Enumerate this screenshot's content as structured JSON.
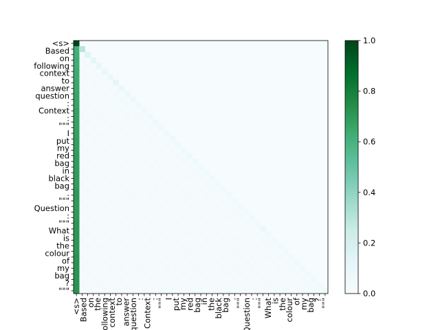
{
  "chart_data": {
    "type": "heatmap",
    "title": "",
    "xlabel": "",
    "ylabel": "",
    "tokens": [
      "<s>",
      "Based",
      "on",
      "the",
      "following",
      "context",
      "to",
      "answer",
      "the",
      "question",
      ":",
      "",
      "Context",
      ":",
      "",
      "\"\"\"",
      "",
      "I",
      "put",
      "my",
      "red",
      "bag",
      "in",
      "the",
      "black",
      "bag",
      ".",
      "",
      "\"\"\"",
      "",
      "Question",
      ":",
      "",
      "\"\"\"",
      "",
      "What",
      "is",
      "the",
      "colour",
      "of",
      "my",
      "bag",
      "?",
      "",
      "\"\"\""
    ],
    "y_tick_labels": [
      "<s>",
      "Based",
      "on",
      "following",
      "context",
      "to",
      "answer",
      "question",
      ":",
      "Context",
      ":",
      "\"\"\"",
      "I",
      "put",
      "my",
      "red",
      "bag",
      "in",
      "black",
      "bag",
      ".",
      "\"\"\"",
      "Question",
      ":",
      "\"\"\"",
      "What",
      "is",
      "the",
      "colour",
      "of",
      "my",
      "bag",
      "?",
      "\"\"\""
    ],
    "x_tick_labels": [
      "<s>",
      "Based",
      "on",
      "the",
      "following",
      "context",
      "to",
      "answer",
      "question",
      ":",
      "Context",
      ":",
      "\"\"\"",
      "I",
      "put",
      "my",
      "red",
      "bag",
      "in",
      "the",
      "black",
      "bag",
      ".",
      "\"\"\"",
      "Question",
      ":",
      "\"\"\"",
      "What",
      "is",
      "the",
      "colour",
      "of",
      "my",
      "bag",
      "?",
      "\"\"\""
    ],
    "first_column_attention": [
      1.0,
      0.62,
      0.62,
      0.63,
      0.63,
      0.64,
      0.64,
      0.65,
      0.65,
      0.66,
      0.66,
      0.66,
      0.67,
      0.67,
      0.67,
      0.67,
      0.68,
      0.68,
      0.68,
      0.68,
      0.69,
      0.69,
      0.69,
      0.69,
      0.69,
      0.69,
      0.7,
      0.7,
      0.7,
      0.7,
      0.7,
      0.7,
      0.71,
      0.71,
      0.71,
      0.71,
      0.71,
      0.71,
      0.72,
      0.72,
      0.72,
      0.72,
      0.72,
      0.72,
      0.72
    ],
    "diagonal_attention": [
      1.0,
      0.3,
      0.15,
      0.12,
      0.1,
      0.09,
      0.08,
      0.12,
      0.08,
      0.07,
      0.07,
      0.06,
      0.06,
      0.06,
      0.06,
      0.06,
      0.06,
      0.06,
      0.06,
      0.06,
      0.06,
      0.06,
      0.05,
      0.05,
      0.05,
      0.05,
      0.05,
      0.05,
      0.05,
      0.05,
      0.05,
      0.05,
      0.05,
      0.08,
      0.05,
      0.05,
      0.05,
      0.05,
      0.05,
      0.05,
      0.05,
      0.05,
      0.05,
      0.05,
      0.06
    ],
    "off_diagonal_attention": 0.01,
    "colorbar": {
      "min": 0.0,
      "max": 1.0,
      "ticks": [
        "0.0",
        "0.2",
        "0.4",
        "0.6",
        "0.8",
        "1.0"
      ],
      "colormap": "Greens-like (white to dark green)",
      "low_color": "#f7fcfd",
      "mid_color": "#66c2a4",
      "high_color": "#00441b"
    },
    "grid": false,
    "legend": "colorbar-right"
  }
}
